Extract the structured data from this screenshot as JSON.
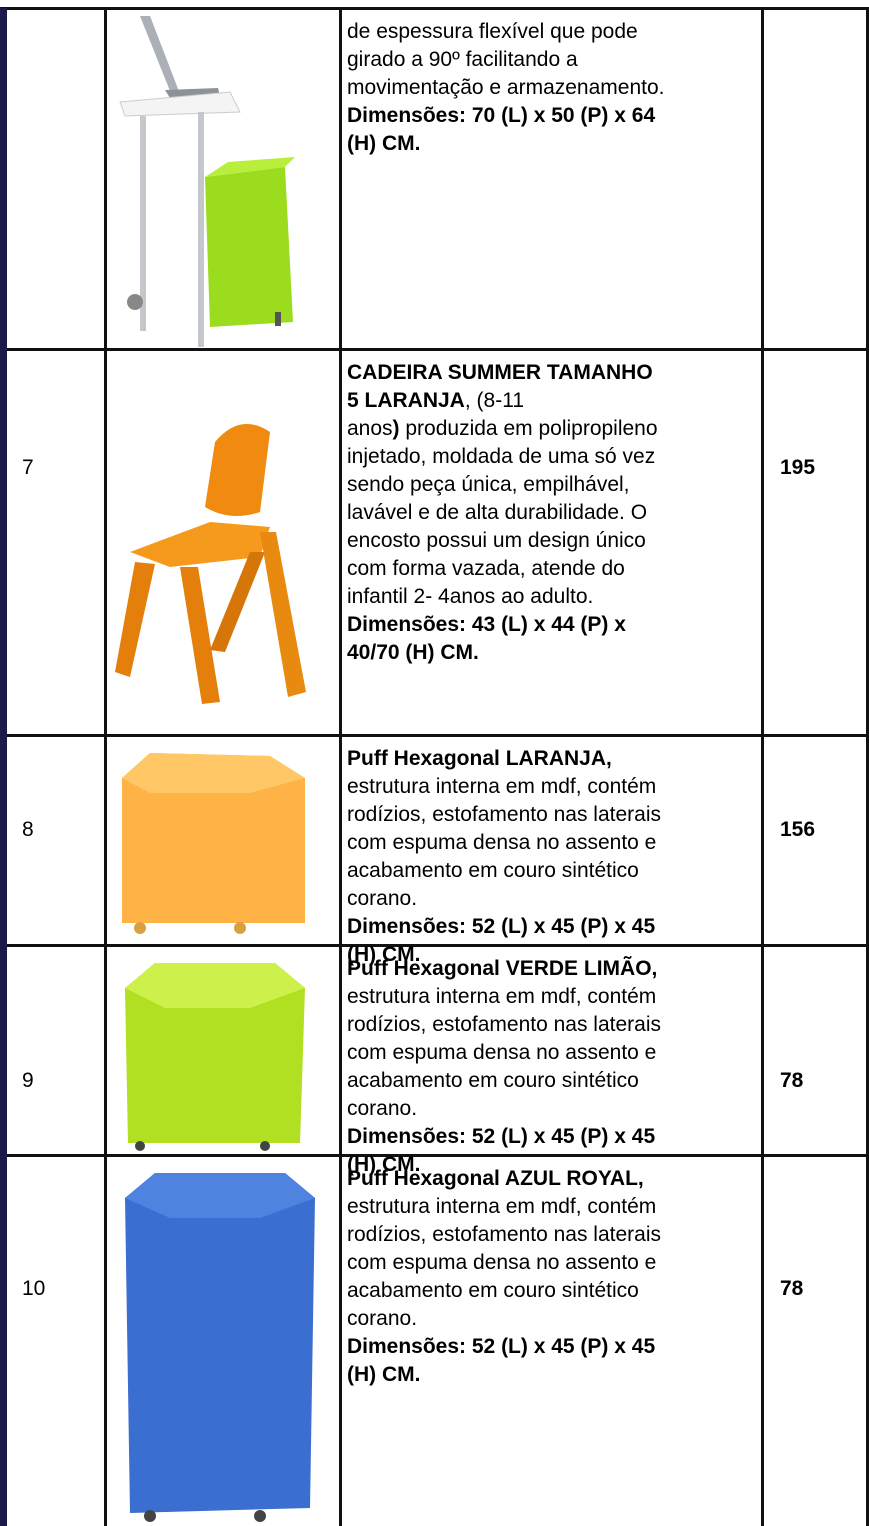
{
  "table": {
    "rows": [
      {
        "lines": [
          [
            {
              "text": "de espessura flexível que pode",
              "bold": false
            }
          ],
          [
            {
              "text": "girado a 90º facilitando a",
              "bold": false
            }
          ],
          [
            {
              "text": "movimentação e armazenamento.",
              "bold": false
            }
          ],
          [
            {
              "text": "Dimensões: 70 (L) x 50 (P) x 64",
              "bold": true
            }
          ],
          [
            {
              "text": "(H) CM.",
              "bold": true
            }
          ]
        ]
      },
      {
        "number": "7",
        "quantity": "195",
        "lines": [
          [
            {
              "text": "CADEIRA SUMMER TAMANHO",
              "bold": true
            }
          ],
          [
            {
              "text": "5 LARANJA",
              "bold": true
            },
            {
              "text": ", (8-11",
              "bold": false
            }
          ],
          [
            {
              "text": "anos",
              "bold": false
            },
            {
              "text": ")",
              "bold": true
            },
            {
              "text": " produzida em polipropileno",
              "bold": false
            }
          ],
          [
            {
              "text": "injetado, moldada de uma só vez",
              "bold": false
            }
          ],
          [
            {
              "text": "sendo peça única, empilhável,",
              "bold": false
            }
          ],
          [
            {
              "text": "lavável e de alta durabilidade. O",
              "bold": false
            }
          ],
          [
            {
              "text": "encosto possui um design único",
              "bold": false
            }
          ],
          [
            {
              "text": "com forma vazada, atende do",
              "bold": false
            }
          ],
          [
            {
              "text": "infantil 2- 4anos ao adulto.",
              "bold": false
            }
          ],
          [
            {
              "text": "Dimensões: 43 (L) x 44 (P) x",
              "bold": true
            }
          ],
          [
            {
              "text": "40/70 (H) CM.",
              "bold": true
            }
          ]
        ]
      },
      {
        "number": "8",
        "quantity": "156",
        "lines": [
          [
            {
              "text": "Puff Hexagonal LARANJA,",
              "bold": true
            }
          ],
          [
            {
              "text": "estrutura interna em mdf, contém",
              "bold": false
            }
          ],
          [
            {
              "text": "rodízios, estofamento nas laterais",
              "bold": false
            }
          ],
          [
            {
              "text": "com espuma densa no assento e",
              "bold": false
            }
          ],
          [
            {
              "text": "acabamento em couro sintético",
              "bold": false
            }
          ],
          [
            {
              "text": "corano.",
              "bold": false
            }
          ],
          [
            {
              "text": "Dimensões: 52 (L) x 45 (P) x 45",
              "bold": true
            }
          ],
          [
            {
              "text": "(H) CM.",
              "bold": true
            }
          ]
        ]
      },
      {
        "number": "9",
        "quantity": "78",
        "lines": [
          [
            {
              "text": "Puff Hexagonal VERDE LIMÃO,",
              "bold": true
            }
          ],
          [
            {
              "text": "estrutura interna em mdf, contém",
              "bold": false
            }
          ],
          [
            {
              "text": "rodízios, estofamento nas laterais",
              "bold": false
            }
          ],
          [
            {
              "text": "com espuma densa no assento e",
              "bold": false
            }
          ],
          [
            {
              "text": "acabamento em couro sintético",
              "bold": false
            }
          ],
          [
            {
              "text": "corano.",
              "bold": false
            }
          ],
          [
            {
              "text": "Dimensões: 52 (L) x 45 (P) x 45",
              "bold": true
            }
          ],
          [
            {
              "text": "(H) CM.",
              "bold": true
            }
          ]
        ]
      },
      {
        "number": "10",
        "quantity": "78",
        "lines": [
          [
            {
              "text": "Puff Hexagonal AZUL ROYAL,",
              "bold": true
            }
          ],
          [
            {
              "text": "estrutura interna em mdf, contém",
              "bold": false
            }
          ],
          [
            {
              "text": "rodízios, estofamento nas laterais",
              "bold": false
            }
          ],
          [
            {
              "text": "com espuma densa no assento e",
              "bold": false
            }
          ],
          [
            {
              "text": "acabamento em couro sintético",
              "bold": false
            }
          ],
          [
            {
              "text": "corano.",
              "bold": false
            }
          ],
          [
            {
              "text": "Dimensões: 52 (L) x 45 (P) x 45",
              "bold": true
            }
          ],
          [
            {
              "text": "(H) CM.",
              "bold": true
            }
          ]
        ]
      }
    ]
  }
}
